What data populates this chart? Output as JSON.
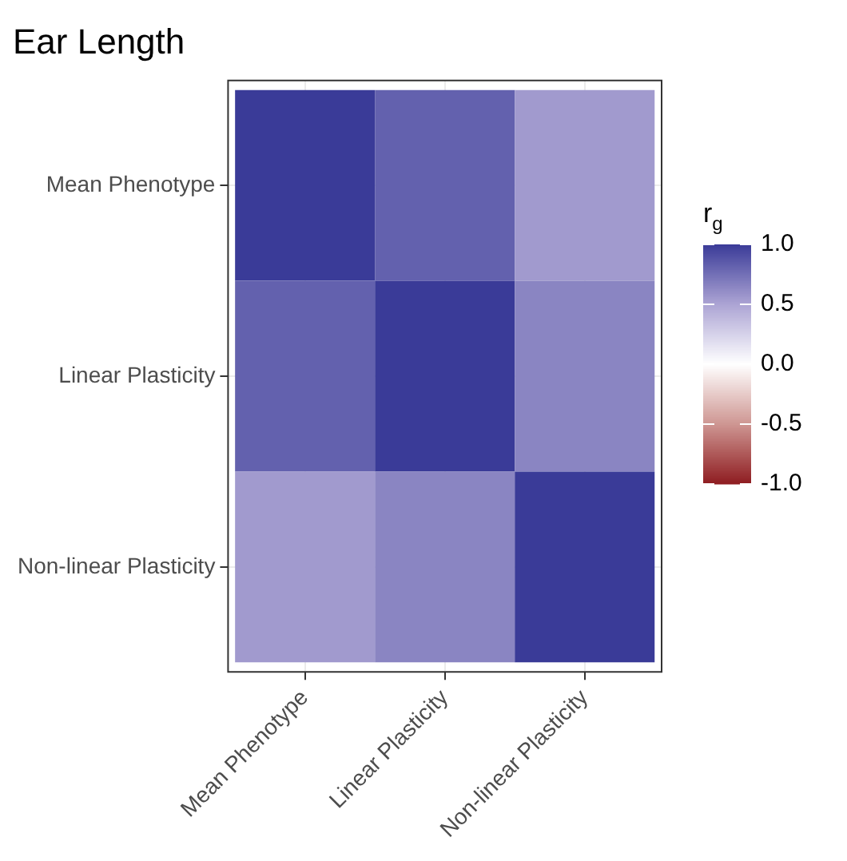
{
  "chart_data": {
    "type": "heatmap",
    "title": "Ear Length",
    "clabel": "r$_{g}$",
    "categories": [
      "Mean Phenotype",
      "Linear Plasticity",
      "Non-linear Plasticity"
    ],
    "y_categories": [
      "Mean Phenotype",
      "Linear Plasticity",
      "Non-linear Plasticity"
    ],
    "cells": [
      [
        1.0,
        0.82,
        0.55
      ],
      [
        0.82,
        1.0,
        0.65
      ],
      [
        0.55,
        0.65,
        1.0
      ]
    ],
    "clim": [
      -1,
      1
    ],
    "cticks": [
      {
        "value": -1,
        "label": "-1.0"
      },
      {
        "value": -0.5,
        "label": "-0.5"
      },
      {
        "value": 0,
        "label": "0.0"
      },
      {
        "value": 0.5,
        "label": "0.5"
      },
      {
        "value": 1,
        "label": "1.0"
      }
    ],
    "grid": true
  }
}
